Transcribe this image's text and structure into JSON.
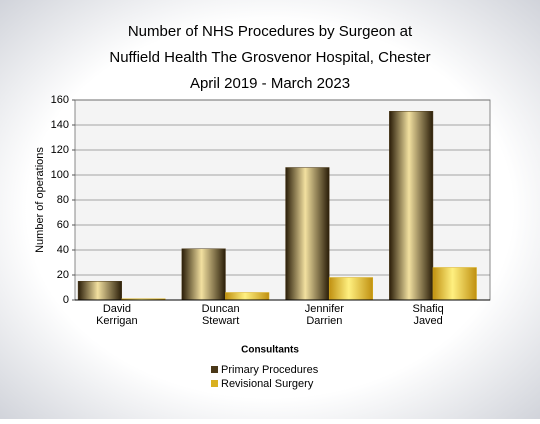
{
  "chart_data": {
    "type": "bar",
    "title": [
      "Number of NHS Procedures by Surgeon at",
      "Nuffield Health The Grosvenor Hospital, Chester",
      "April 2019 - March 2023"
    ],
    "x_label": "Consultants",
    "y_label": "Number of operations",
    "categories": [
      [
        "David",
        "Kerrigan"
      ],
      [
        "Duncan",
        "Stewart"
      ],
      [
        "Jennifer",
        "Darrien"
      ],
      [
        "Shafiq",
        "Javed"
      ]
    ],
    "series": [
      {
        "name": "Primary Procedures",
        "color": "#4a3818",
        "values": [
          15,
          41,
          106,
          151
        ]
      },
      {
        "name": "Revisional Surgery",
        "color": "#d9b020",
        "values": [
          1,
          6,
          18,
          26
        ]
      }
    ],
    "ylim": [
      0,
      160
    ],
    "yticks": [
      0,
      20,
      40,
      60,
      80,
      100,
      120,
      140,
      160
    ],
    "grid": true
  }
}
